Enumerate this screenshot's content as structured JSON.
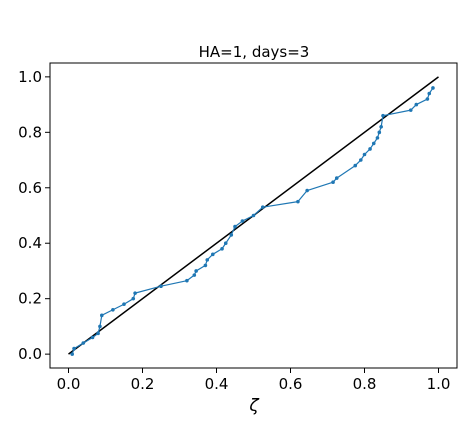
{
  "chart_data": {
    "type": "line",
    "title": "HA=1, days=3",
    "xlabel": "ζ",
    "ylabel": "",
    "xlim": [
      -0.05,
      1.05
    ],
    "ylim": [
      -0.05,
      1.05
    ],
    "xticks": [
      0.0,
      0.2,
      0.4,
      0.6,
      0.8,
      1.0
    ],
    "yticks": [
      0.0,
      0.2,
      0.4,
      0.6,
      0.8,
      1.0
    ],
    "xtick_labels": [
      "0.0",
      "0.2",
      "0.4",
      "0.6",
      "0.8",
      "1.0"
    ],
    "ytick_labels": [
      "0.0",
      "0.2",
      "0.4",
      "0.6",
      "0.8",
      "1.0"
    ],
    "grid": false,
    "series": [
      {
        "color": "#1f77b4",
        "marker": "dot",
        "x": [
          0.01,
          0.015,
          0.04,
          0.065,
          0.08,
          0.085,
          0.09,
          0.12,
          0.15,
          0.175,
          0.18,
          0.25,
          0.32,
          0.34,
          0.345,
          0.37,
          0.375,
          0.39,
          0.415,
          0.425,
          0.44,
          0.45,
          0.47,
          0.5,
          0.525,
          0.62,
          0.645,
          0.715,
          0.725,
          0.775,
          0.79,
          0.8,
          0.815,
          0.825,
          0.835,
          0.84,
          0.845,
          0.85,
          0.925,
          0.94,
          0.97,
          0.975,
          0.985
        ],
        "y": [
          0.0,
          0.02,
          0.04,
          0.06,
          0.075,
          0.1,
          0.14,
          0.16,
          0.18,
          0.2,
          0.22,
          0.245,
          0.265,
          0.285,
          0.3,
          0.32,
          0.34,
          0.36,
          0.38,
          0.4,
          0.43,
          0.46,
          0.48,
          0.5,
          0.53,
          0.55,
          0.59,
          0.62,
          0.635,
          0.68,
          0.7,
          0.72,
          0.74,
          0.76,
          0.78,
          0.8,
          0.82,
          0.86,
          0.88,
          0.9,
          0.92,
          0.94,
          0.96
        ]
      }
    ],
    "reference_line": {
      "x": [
        0.0,
        1.0
      ],
      "y": [
        0.0,
        1.0
      ],
      "color": "#000000"
    }
  }
}
